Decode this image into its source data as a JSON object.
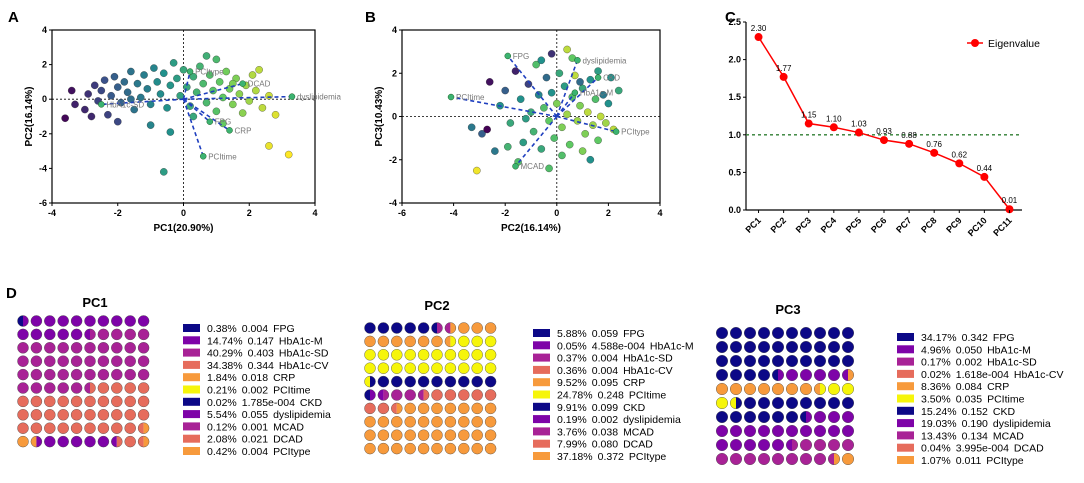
{
  "panel_labels": {
    "a": "A",
    "b": "B",
    "c": "C",
    "d": "D"
  },
  "colors": {
    "FPG": "#0c0887",
    "HbA1c-M": "#7e03a8",
    "HbA1c-SD": "#a82296",
    "HbA1c-CV": "#e66c5c",
    "CRP": "#f79a3c",
    "PCItime": "#f6f50a",
    "CKD": "#0c0887",
    "dyslipidemia": "#7e03a8",
    "MCAD": "#a82296",
    "DCAD": "#e66c5c",
    "PCItype": "#f79a3c",
    "eigen_line": "#ff0000",
    "threshold": "#2e7d32",
    "loading_line": "#1f3fbf"
  },
  "chart_data": [
    {
      "type": "scatter",
      "id": "A",
      "xlabel": "PC1(20.90%)",
      "ylabel": "PC2(16.14%)",
      "xlim": [
        -4,
        4
      ],
      "ylim": [
        -6,
        4
      ],
      "xticks": [
        "-4",
        "-2",
        "0",
        "2",
        "4"
      ],
      "yticks": [
        "-6",
        "-4",
        "-2",
        "0",
        "2",
        "4"
      ],
      "loadings": [
        {
          "name": "PCItype",
          "x": 0.2,
          "y": 1.6
        },
        {
          "name": "DCAD",
          "x": 1.8,
          "y": 0.9
        },
        {
          "name": "dyslipidemia",
          "x": 3.3,
          "y": 0.15
        },
        {
          "name": "CRP",
          "x": 1.4,
          "y": -1.8
        },
        {
          "name": "PCItime",
          "x": 0.6,
          "y": -3.3
        },
        {
          "name": "FPG",
          "x": 0.8,
          "y": -1.3
        },
        {
          "name": "HbA1c-SD",
          "x": -2.5,
          "y": -0.3
        }
      ],
      "points": [
        [
          -3.4,
          0.5,
          0.05
        ],
        [
          -3.3,
          -0.3,
          0.1
        ],
        [
          -3.0,
          -0.6,
          0.12
        ],
        [
          -2.9,
          0.3,
          0.15
        ],
        [
          -2.7,
          0.8,
          0.18
        ],
        [
          -2.6,
          -0.1,
          0.2
        ],
        [
          -2.5,
          0.5,
          0.22
        ],
        [
          -2.4,
          1.1,
          0.25
        ],
        [
          -2.3,
          -0.9,
          0.2
        ],
        [
          -2.2,
          0.2,
          0.28
        ],
        [
          -2.1,
          1.3,
          0.3
        ],
        [
          -2.0,
          0.7,
          0.3
        ],
        [
          -1.9,
          -0.2,
          0.32
        ],
        [
          -1.8,
          1.0,
          0.35
        ],
        [
          -1.7,
          0.4,
          0.35
        ],
        [
          -1.6,
          1.6,
          0.38
        ],
        [
          -1.5,
          -0.6,
          0.38
        ],
        [
          -1.4,
          0.9,
          0.4
        ],
        [
          -1.3,
          0.1,
          0.4
        ],
        [
          -1.2,
          1.4,
          0.42
        ],
        [
          -1.1,
          0.6,
          0.42
        ],
        [
          -1.0,
          -0.3,
          0.45
        ],
        [
          -0.9,
          1.8,
          0.45
        ],
        [
          -0.8,
          1.0,
          0.48
        ],
        [
          -0.7,
          0.3,
          0.48
        ],
        [
          -0.6,
          1.5,
          0.5
        ],
        [
          -0.5,
          -0.5,
          0.5
        ],
        [
          -0.4,
          0.8,
          0.52
        ],
        [
          -0.3,
          2.1,
          0.55
        ],
        [
          -0.2,
          1.2,
          0.55
        ],
        [
          -0.1,
          0.2,
          0.58
        ],
        [
          0.0,
          1.7,
          0.6
        ],
        [
          0.1,
          0.7,
          0.6
        ],
        [
          0.2,
          -0.4,
          0.62
        ],
        [
          0.3,
          1.3,
          0.62
        ],
        [
          0.4,
          0.4,
          0.65
        ],
        [
          0.5,
          1.9,
          0.65
        ],
        [
          0.6,
          0.9,
          0.68
        ],
        [
          0.7,
          -0.2,
          0.68
        ],
        [
          0.8,
          1.4,
          0.7
        ],
        [
          0.9,
          0.5,
          0.72
        ],
        [
          1.0,
          -0.7,
          0.72
        ],
        [
          1.1,
          1.0,
          0.75
        ],
        [
          1.2,
          0.1,
          0.75
        ],
        [
          1.3,
          1.6,
          0.78
        ],
        [
          1.4,
          0.6,
          0.78
        ],
        [
          1.5,
          -0.3,
          0.8
        ],
        [
          1.6,
          1.2,
          0.8
        ],
        [
          1.7,
          0.3,
          0.82
        ],
        [
          1.8,
          -0.8,
          0.82
        ],
        [
          1.9,
          0.8,
          0.85
        ],
        [
          2.0,
          -0.1,
          0.85
        ],
        [
          2.1,
          1.4,
          0.88
        ],
        [
          2.2,
          0.5,
          0.88
        ],
        [
          2.4,
          -0.5,
          0.9
        ],
        [
          2.6,
          0.2,
          0.92
        ],
        [
          2.8,
          -0.9,
          0.95
        ],
        [
          3.2,
          -3.2,
          1.0
        ],
        [
          2.6,
          -2.7,
          0.97
        ],
        [
          -0.6,
          -4.2,
          0.55
        ],
        [
          -3.6,
          -1.1,
          0.02
        ],
        [
          -2.0,
          -1.3,
          0.22
        ],
        [
          -1.0,
          -1.5,
          0.45
        ],
        [
          0.3,
          -1.0,
          0.6
        ],
        [
          1.2,
          -1.4,
          0.76
        ],
        [
          1.0,
          2.3,
          0.68
        ],
        [
          -0.4,
          -1.9,
          0.5
        ],
        [
          -1.6,
          0.0,
          0.36
        ],
        [
          0.7,
          2.5,
          0.63
        ],
        [
          2.3,
          1.7,
          0.9
        ],
        [
          -2.8,
          -1.0,
          0.12
        ],
        [
          1.5,
          0.9,
          0.8
        ]
      ]
    },
    {
      "type": "scatter",
      "id": "B",
      "xlabel": "PC2(16.14%)",
      "ylabel": "PC3(10.43%)",
      "xlim": [
        -6,
        4
      ],
      "ylim": [
        -4,
        4
      ],
      "xticks": [
        "-6",
        "-4",
        "-2",
        "0",
        "2",
        "4"
      ],
      "yticks": [
        "-4",
        "-2",
        "0",
        "2",
        "4"
      ],
      "loadings": [
        {
          "name": "FPG",
          "x": -1.9,
          "y": 2.8
        },
        {
          "name": "dyslipidemia",
          "x": 0.8,
          "y": 2.6
        },
        {
          "name": "CKD",
          "x": 1.6,
          "y": 1.8
        },
        {
          "name": "HbA1c-M",
          "x": 0.7,
          "y": 1.1
        },
        {
          "name": "PCItime",
          "x": -4.1,
          "y": 0.9
        },
        {
          "name": "PCItype",
          "x": 2.3,
          "y": -0.7
        },
        {
          "name": "MCAD",
          "x": -1.6,
          "y": -2.3
        }
      ],
      "points": [
        [
          -3.3,
          -0.5,
          0.4
        ],
        [
          -2.9,
          -0.8,
          0.3
        ],
        [
          -2.6,
          1.6,
          0.05
        ],
        [
          -2.4,
          -1.6,
          0.4
        ],
        [
          -2.2,
          0.5,
          0.5
        ],
        [
          -2.0,
          1.2,
          0.3
        ],
        [
          -1.8,
          -0.3,
          0.6
        ],
        [
          -1.6,
          2.1,
          0.1
        ],
        [
          -1.4,
          0.8,
          0.5
        ],
        [
          -1.3,
          -1.2,
          0.55
        ],
        [
          -1.1,
          1.5,
          0.2
        ],
        [
          -1.0,
          0.2,
          0.6
        ],
        [
          -0.9,
          -0.7,
          0.65
        ],
        [
          -0.8,
          2.4,
          0.7
        ],
        [
          -0.7,
          1.0,
          0.45
        ],
        [
          -0.6,
          -1.5,
          0.6
        ],
        [
          -0.5,
          0.4,
          0.7
        ],
        [
          -0.4,
          1.8,
          0.35
        ],
        [
          -0.3,
          -0.2,
          0.75
        ],
        [
          -0.2,
          1.1,
          0.5
        ],
        [
          -0.1,
          -1.0,
          0.7
        ],
        [
          0.0,
          0.6,
          0.8
        ],
        [
          0.1,
          2.0,
          0.6
        ],
        [
          0.2,
          -0.5,
          0.8
        ],
        [
          0.3,
          1.4,
          0.55
        ],
        [
          0.4,
          0.1,
          0.85
        ],
        [
          0.5,
          -1.3,
          0.75
        ],
        [
          0.6,
          0.9,
          0.7
        ],
        [
          0.7,
          1.9,
          0.9
        ],
        [
          0.8,
          -0.2,
          0.85
        ],
        [
          0.9,
          0.5,
          0.8
        ],
        [
          1.0,
          1.3,
          0.6
        ],
        [
          1.1,
          -0.8,
          0.8
        ],
        [
          1.2,
          0.2,
          0.9
        ],
        [
          1.3,
          1.7,
          0.5
        ],
        [
          1.4,
          -0.4,
          0.85
        ],
        [
          1.5,
          0.8,
          0.7
        ],
        [
          1.6,
          -1.1,
          0.75
        ],
        [
          1.7,
          0.0,
          0.9
        ],
        [
          1.8,
          1.0,
          0.4
        ],
        [
          1.9,
          -0.3,
          0.85
        ],
        [
          2.0,
          0.6,
          0.5
        ],
        [
          2.2,
          -0.6,
          0.9
        ],
        [
          2.4,
          1.2,
          0.6
        ],
        [
          -3.1,
          -2.5,
          0.98
        ],
        [
          -0.3,
          -2.4,
          0.7
        ],
        [
          0.4,
          3.1,
          0.9
        ],
        [
          -2.7,
          -0.6,
          0.0
        ],
        [
          -1.5,
          -2.1,
          0.7
        ],
        [
          1.3,
          -2.0,
          0.5
        ],
        [
          0.6,
          2.7,
          0.75
        ],
        [
          -0.6,
          2.6,
          0.5
        ],
        [
          1.6,
          2.1,
          0.55
        ],
        [
          -1.9,
          -1.4,
          0.65
        ],
        [
          0.2,
          -1.8,
          0.7
        ],
        [
          2.1,
          1.8,
          0.5
        ],
        [
          -0.2,
          2.9,
          0.15
        ],
        [
          1.0,
          -1.6,
          0.8
        ],
        [
          -1.2,
          -0.1,
          0.55
        ],
        [
          0.9,
          1.6,
          0.35
        ]
      ]
    },
    {
      "type": "line",
      "id": "C",
      "categories": [
        "PC1",
        "PC2",
        "PC3",
        "PC4",
        "PC5",
        "PC6",
        "PC7",
        "PC8",
        "PC9",
        "PC10",
        "PC11"
      ],
      "values": [
        2.3,
        1.77,
        1.15,
        1.1,
        1.03,
        0.93,
        0.88,
        0.76,
        0.62,
        0.44,
        0.01
      ],
      "labels": [
        "2.30",
        "1.77",
        "1.15",
        "1.10",
        "1.03",
        "0.93",
        "0.88",
        "0.76",
        "0.62",
        "0.44",
        "0.01"
      ],
      "ylim": [
        0,
        2.5
      ],
      "yticks": [
        "0.0",
        "0.5",
        "1.0",
        "1.5",
        "2.0",
        "2.5"
      ],
      "threshold": 1.0,
      "legend": "Eigenvalue"
    },
    {
      "type": "waffle",
      "id": "D",
      "panels": [
        {
          "title": "PC1",
          "rows": [
            {
              "pct": "0.38%",
              "val": "0.004",
              "name": "FPG"
            },
            {
              "pct": "14.74%",
              "val": "0.147",
              "name": "HbA1c-M"
            },
            {
              "pct": "40.29%",
              "val": "0.403",
              "name": "HbA1c-SD"
            },
            {
              "pct": "34.38%",
              "val": "0.344",
              "name": "HbA1c-CV"
            },
            {
              "pct": "1.84%",
              "val": "0.018",
              "name": "CRP"
            },
            {
              "pct": "0.21%",
              "val": "0.002",
              "name": "PCItime"
            },
            {
              "pct": "0.02%",
              "val": "1.785e-004",
              "name": "CKD"
            },
            {
              "pct": "5.54%",
              "val": "0.055",
              "name": "dyslipidemia"
            },
            {
              "pct": "0.12%",
              "val": "0.001",
              "name": "MCAD"
            },
            {
              "pct": "2.08%",
              "val": "0.021",
              "name": "DCAD"
            },
            {
              "pct": "0.42%",
              "val": "0.004",
              "name": "PCItype"
            }
          ]
        },
        {
          "title": "PC2",
          "rows": [
            {
              "pct": "5.88%",
              "val": "0.059",
              "name": "FPG"
            },
            {
              "pct": "0.05%",
              "val": "4.588e-004",
              "name": "HbA1c-M"
            },
            {
              "pct": "0.37%",
              "val": "0.004",
              "name": "HbA1c-SD"
            },
            {
              "pct": "0.36%",
              "val": "0.004",
              "name": "HbA1c-CV"
            },
            {
              "pct": "9.52%",
              "val": "0.095",
              "name": "CRP"
            },
            {
              "pct": "24.78%",
              "val": "0.248",
              "name": "PCItime"
            },
            {
              "pct": "9.91%",
              "val": "0.099",
              "name": "CKD"
            },
            {
              "pct": "0.19%",
              "val": "0.002",
              "name": "dyslipidemia"
            },
            {
              "pct": "3.76%",
              "val": "0.038",
              "name": "MCAD"
            },
            {
              "pct": "7.99%",
              "val": "0.080",
              "name": "DCAD"
            },
            {
              "pct": "37.18%",
              "val": "0.372",
              "name": "PCItype"
            }
          ]
        },
        {
          "title": "PC3",
          "rows": [
            {
              "pct": "34.17%",
              "val": "0.342",
              "name": "FPG"
            },
            {
              "pct": "4.96%",
              "val": "0.050",
              "name": "HbA1c-M"
            },
            {
              "pct": "0.17%",
              "val": "0.002",
              "name": "HbA1c-SD"
            },
            {
              "pct": "0.02%",
              "val": "1.618e-004",
              "name": "HbA1c-CV"
            },
            {
              "pct": "8.36%",
              "val": "0.084",
              "name": "CRP"
            },
            {
              "pct": "3.50%",
              "val": "0.035",
              "name": "PCItime"
            },
            {
              "pct": "15.24%",
              "val": "0.152",
              "name": "CKD"
            },
            {
              "pct": "19.03%",
              "val": "0.190",
              "name": "dyslipidemia"
            },
            {
              "pct": "13.43%",
              "val": "0.134",
              "name": "MCAD"
            },
            {
              "pct": "0.04%",
              "val": "3.995e-004",
              "name": "DCAD"
            },
            {
              "pct": "1.07%",
              "val": "0.011",
              "name": "PCItype"
            }
          ]
        }
      ]
    }
  ]
}
